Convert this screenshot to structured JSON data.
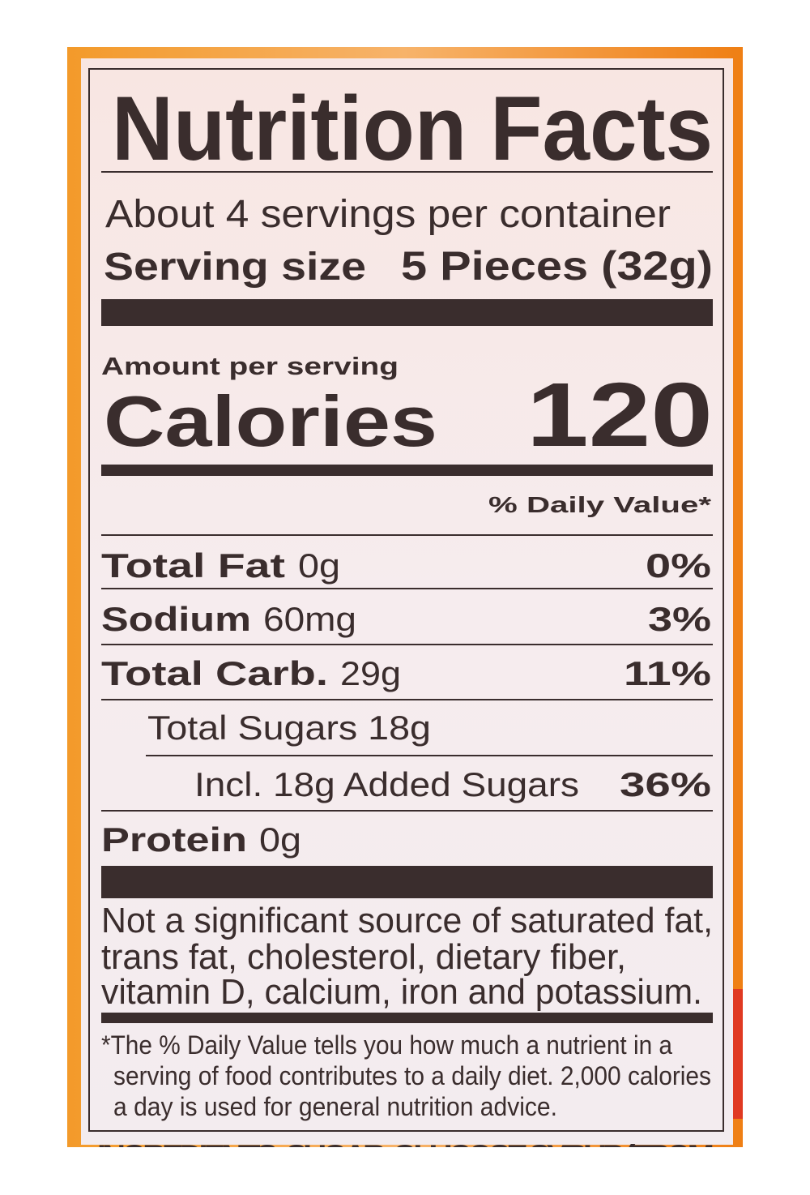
{
  "label": {
    "title": "Nutrition Facts",
    "servings_per_container": "About 4 servings per container",
    "serving_size_label": "Serving size",
    "serving_size_value": "5 Pieces (32g)",
    "amount_per_serving": "Amount per serving",
    "calories_label": "Calories",
    "calories_value": "120",
    "daily_value_header": "% Daily Value*",
    "nutrients": [
      {
        "name": "Total Fat",
        "amount": "0g",
        "dv": "0%"
      },
      {
        "name": "Sodium",
        "amount": "60mg",
        "dv": "3%"
      },
      {
        "name": "Total Carb.",
        "amount": "29g",
        "dv": "11%"
      },
      {
        "name": "Total Sugars 18g",
        "amount": "",
        "dv": ""
      },
      {
        "name": "Incl. 18g Added Sugars",
        "amount": "",
        "dv": "36%"
      },
      {
        "name": "Protein",
        "amount": "0g",
        "dv": ""
      }
    ],
    "not_significant": [
      "Not a significant source of saturated fat,",
      "trans fat, cholesterol, dietary fiber,",
      "vitamin D, calcium, iron and potassium."
    ],
    "footnote": [
      "*The % Daily Value tells you how much a nutrient in a",
      "serving of food contributes to a daily diet. 2,000 calories",
      "a day is used for general nutrition advice."
    ],
    "ingredients_partial": "INGREDIENTS: SUGAR, GLUCOSE SYRUP (FROM"
  },
  "colors": {
    "package_orange": "#f08a1e",
    "label_background": "#f6ecec",
    "ink": "#3a2d2d"
  }
}
